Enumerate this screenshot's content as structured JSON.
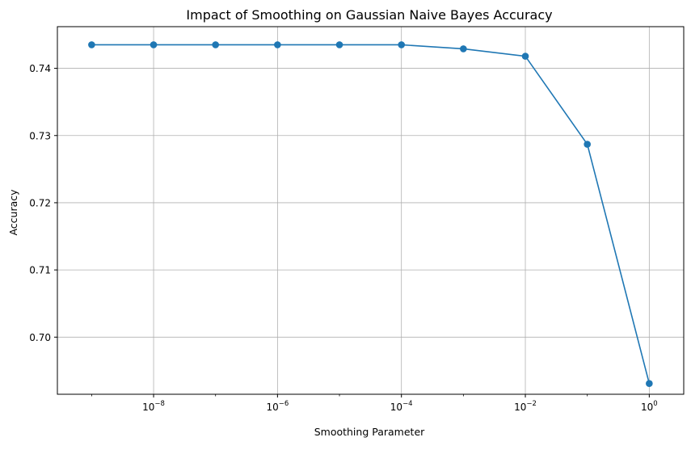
{
  "chart_data": {
    "type": "line",
    "title": "Impact of Smoothing on Gaussian Naive Bayes Accuracy",
    "xlabel": "Smoothing Parameter",
    "ylabel": "Accuracy",
    "x_scale": "log",
    "x_tick_labels": [
      {
        "base": "10",
        "exp": "−8",
        "value": 1e-08
      },
      {
        "base": "10",
        "exp": "−6",
        "value": 1e-06
      },
      {
        "base": "10",
        "exp": "−4",
        "value": 0.0001
      },
      {
        "base": "10",
        "exp": "−2",
        "value": 0.01
      },
      {
        "base": "10",
        "exp": "0",
        "value": 1
      }
    ],
    "y_ticks": [
      0.7,
      0.71,
      0.72,
      0.73,
      0.74
    ],
    "y_tick_labels": [
      "0.70",
      "0.71",
      "0.72",
      "0.73",
      "0.74"
    ],
    "xlim": [
      2.8e-10,
      3.6
    ],
    "ylim": [
      0.6915,
      0.7462
    ],
    "grid": true,
    "series": [
      {
        "color": "#1f77b4",
        "marker": "circle",
        "x": [
          1e-09,
          1e-08,
          1e-07,
          1e-06,
          1e-05,
          0.0001,
          0.001,
          0.01,
          0.1,
          1
        ],
        "y": [
          0.7435,
          0.7435,
          0.7435,
          0.7435,
          0.7435,
          0.7435,
          0.7429,
          0.7418,
          0.7287,
          0.6931
        ]
      }
    ]
  }
}
